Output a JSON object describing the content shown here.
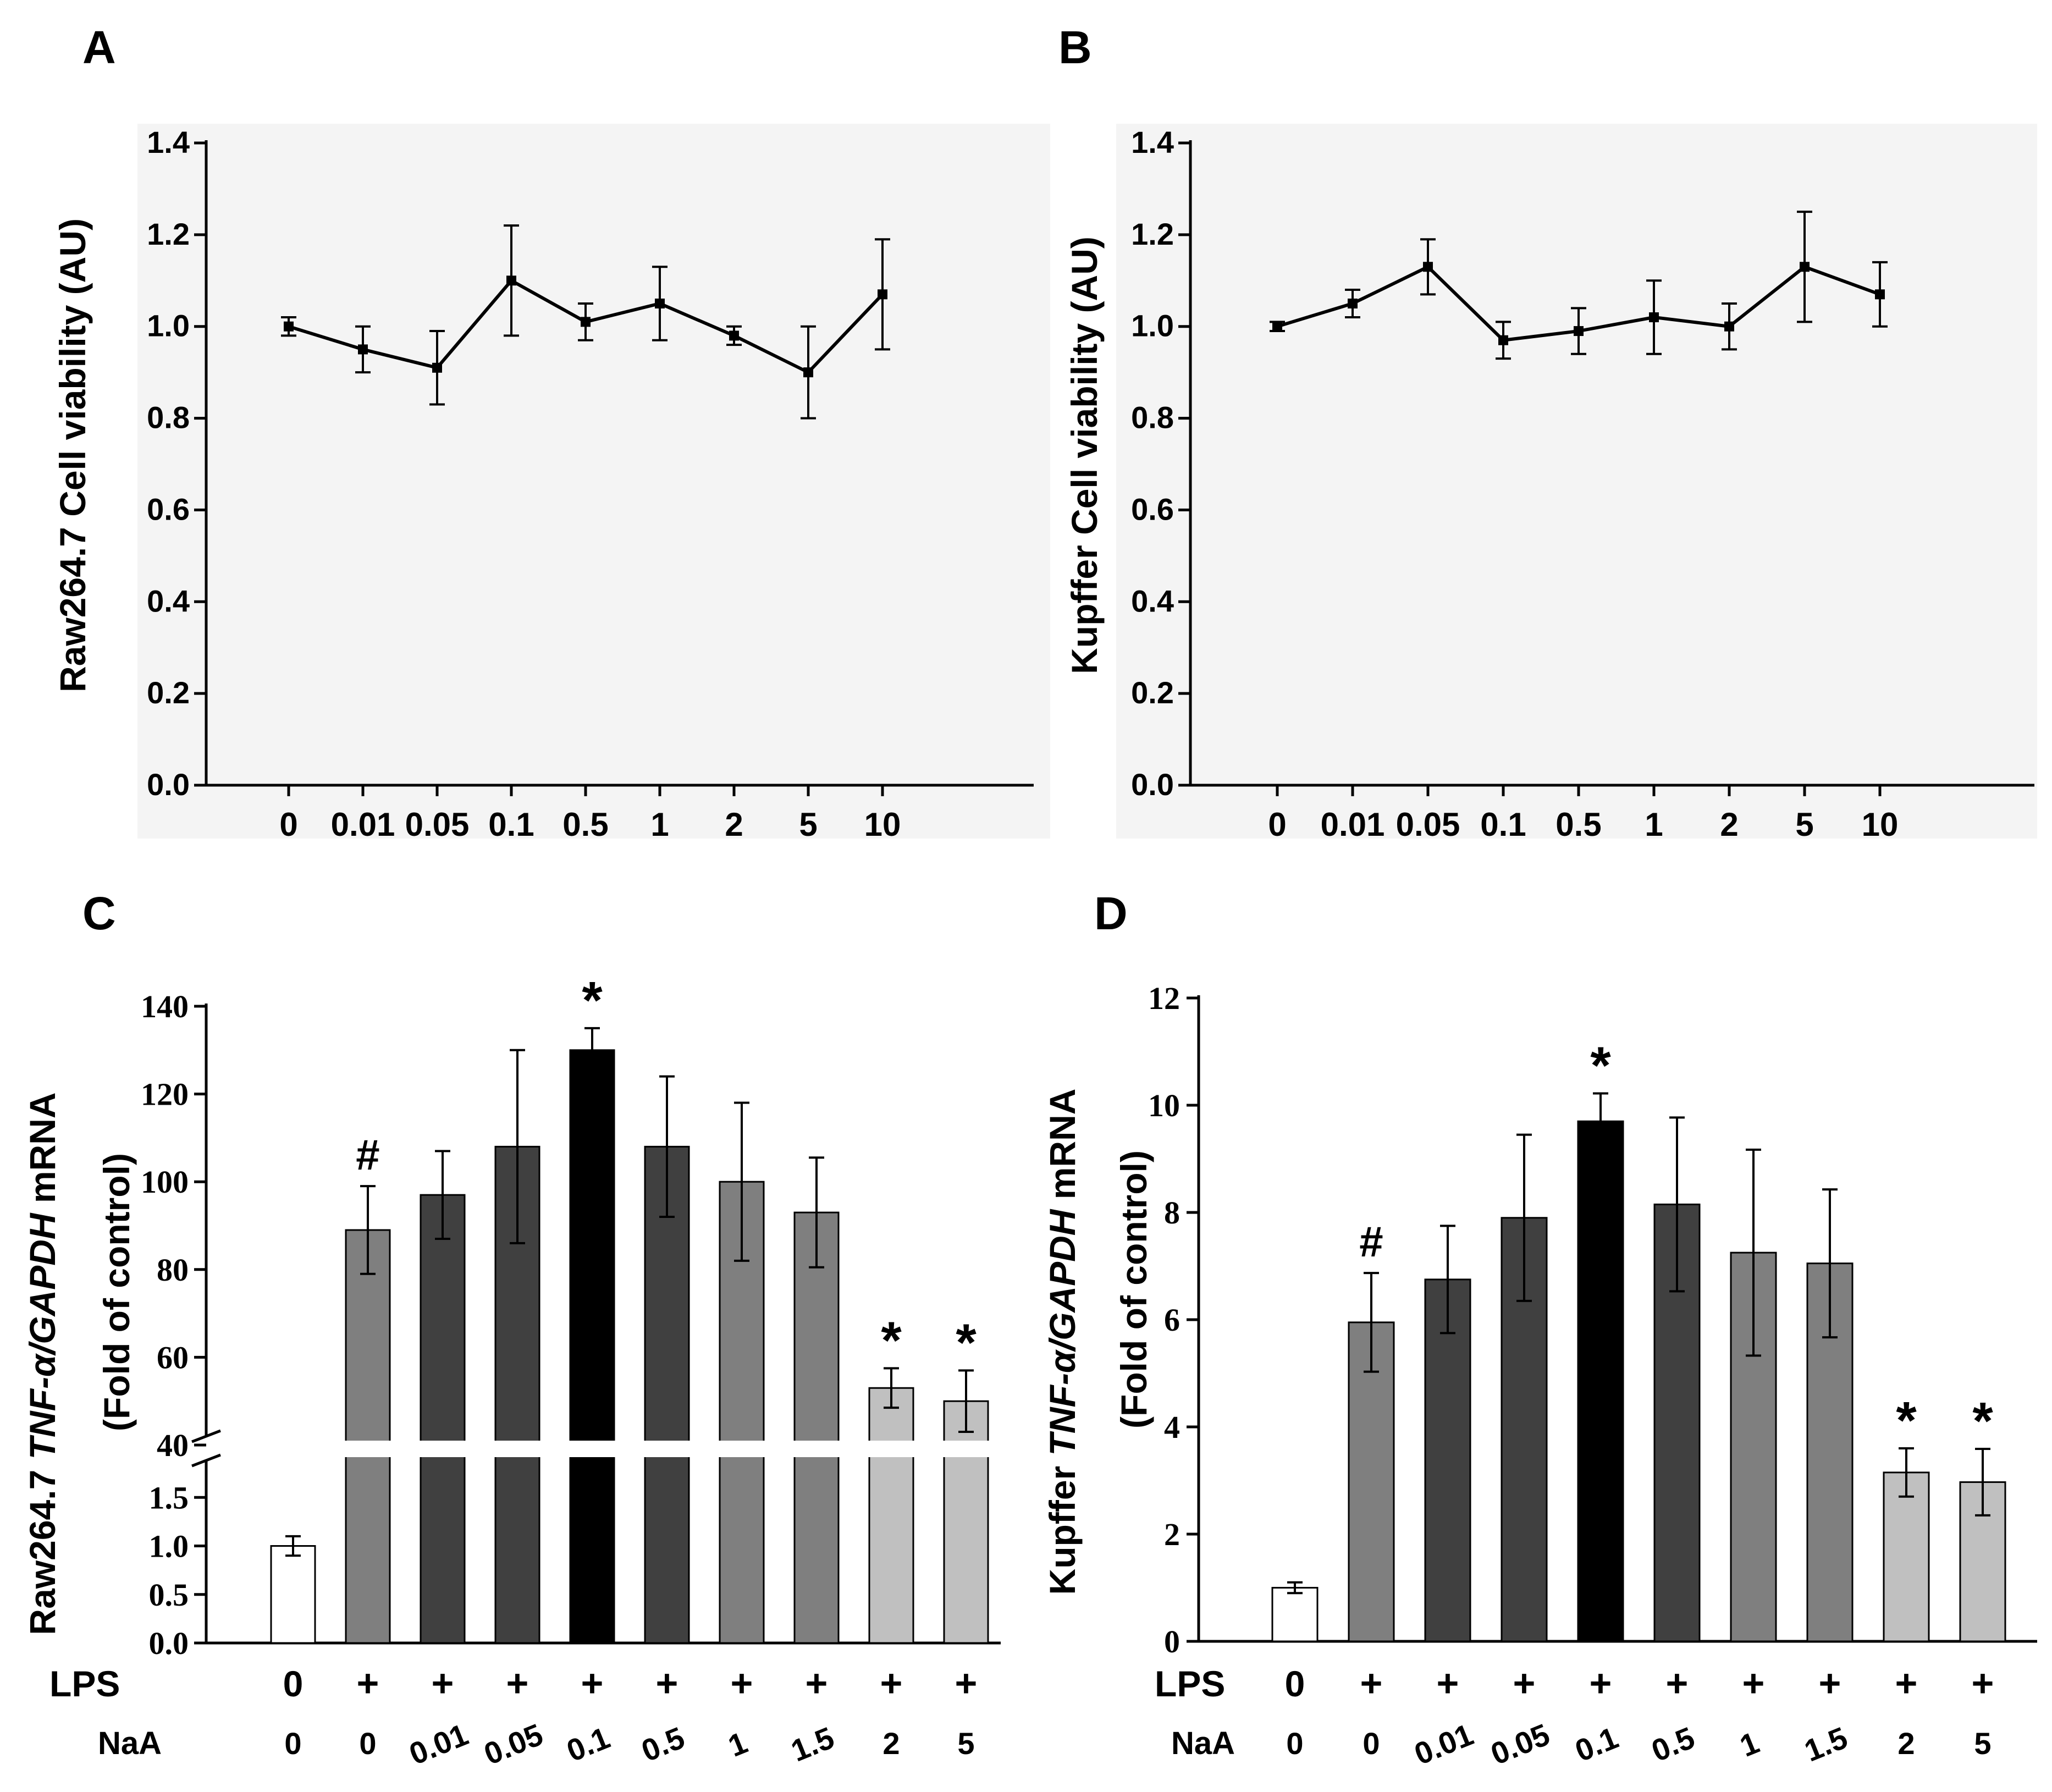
{
  "chart_data": [
    {
      "panel": "A",
      "type": "line",
      "ylabel": "Raw264.7 Cell viability (AU)",
      "ylim": [
        0,
        1.4
      ],
      "yticks": [
        "0.0",
        "0.2",
        "0.4",
        "0.6",
        "0.8",
        "1.0",
        "1.2",
        "1.4"
      ],
      "categories": [
        "0",
        "0.01",
        "0.05",
        "0.1",
        "0.5",
        "1",
        "2",
        "5",
        "10"
      ],
      "values": [
        1.0,
        0.95,
        0.91,
        1.1,
        1.01,
        1.05,
        0.98,
        0.9,
        1.07
      ],
      "errors": [
        0.02,
        0.05,
        0.08,
        0.12,
        0.04,
        0.08,
        0.02,
        0.1,
        0.12
      ]
    },
    {
      "panel": "B",
      "type": "line",
      "ylabel": "Kupffer Cell viability (AU)",
      "ylim": [
        0,
        1.4
      ],
      "yticks": [
        "0.0",
        "0.2",
        "0.4",
        "0.6",
        "0.8",
        "1.0",
        "1.2",
        "1.4"
      ],
      "categories": [
        "0",
        "0.01",
        "0.05",
        "0.1",
        "0.5",
        "1",
        "2",
        "5",
        "10"
      ],
      "values": [
        1.0,
        1.05,
        1.13,
        0.97,
        0.99,
        1.02,
        1.0,
        1.13,
        1.07
      ],
      "errors": [
        0.01,
        0.03,
        0.06,
        0.04,
        0.05,
        0.08,
        0.05,
        0.12,
        0.07
      ]
    },
    {
      "panel": "C",
      "type": "bar",
      "ylabel_parts": [
        "Raw264.7 ",
        "TNF-α/GAPDH",
        " mRNA"
      ],
      "ylabel2": "(Fold of control)",
      "y_broken": true,
      "lower_ylim": [
        0,
        2
      ],
      "lower_yticks": [
        "0.0",
        "0.5",
        "1.0",
        "1.5"
      ],
      "upper_ylim": [
        40,
        140
      ],
      "upper_yticks": [
        "40",
        "60",
        "80",
        "100",
        "120",
        "140"
      ],
      "values": [
        1.0,
        89,
        97,
        108,
        130,
        108,
        100,
        93,
        53,
        50
      ],
      "errors": [
        0.1,
        10,
        10,
        22,
        5,
        16,
        18,
        12.5,
        4.5,
        7
      ],
      "colors": [
        "#ffffff",
        "#7f7f7f",
        "#404040",
        "#404040",
        "#000000",
        "#404040",
        "#7f7f7f",
        "#7f7f7f",
        "#c0c0c0",
        "#c0c0c0"
      ],
      "annotations": [
        "",
        "#",
        "",
        "",
        "*",
        "",
        "",
        "",
        "*",
        "*"
      ],
      "lps_label": "LPS",
      "lps": [
        "0",
        "+",
        "+",
        "+",
        "+",
        "+",
        "+",
        "+",
        "+",
        "+"
      ],
      "naa_label": "NaA",
      "naa": [
        "0",
        "0",
        "0.01",
        "0.05",
        "0.1",
        "0.5",
        "1",
        "1.5",
        "2",
        "5"
      ]
    },
    {
      "panel": "D",
      "type": "bar",
      "ylabel_parts": [
        "Kupffer ",
        "TNF-α/GAPDH",
        " mRNA"
      ],
      "ylabel2": "(Fold of control)",
      "ylim": [
        0,
        12
      ],
      "yticks": [
        "0",
        "2",
        "4",
        "6",
        "8",
        "10",
        "12"
      ],
      "values": [
        1.0,
        5.95,
        6.75,
        7.9,
        9.7,
        8.15,
        7.25,
        7.05,
        3.15,
        2.97
      ],
      "errors": [
        0.1,
        0.92,
        1.0,
        1.55,
        0.52,
        1.62,
        1.92,
        1.38,
        0.45,
        0.62
      ],
      "colors": [
        "#ffffff",
        "#7f7f7f",
        "#404040",
        "#404040",
        "#000000",
        "#404040",
        "#7f7f7f",
        "#7f7f7f",
        "#c0c0c0",
        "#c0c0c0"
      ],
      "annotations": [
        "",
        "#",
        "",
        "",
        "*",
        "",
        "",
        "",
        "*",
        "*"
      ],
      "lps_label": "LPS",
      "lps": [
        "0",
        "+",
        "+",
        "+",
        "+",
        "+",
        "+",
        "+",
        "+",
        "+"
      ],
      "naa_label": "NaA",
      "naa": [
        "0",
        "0",
        "0.01",
        "0.05",
        "0.1",
        "0.5",
        "1",
        "1.5",
        "2",
        "5"
      ]
    }
  ]
}
